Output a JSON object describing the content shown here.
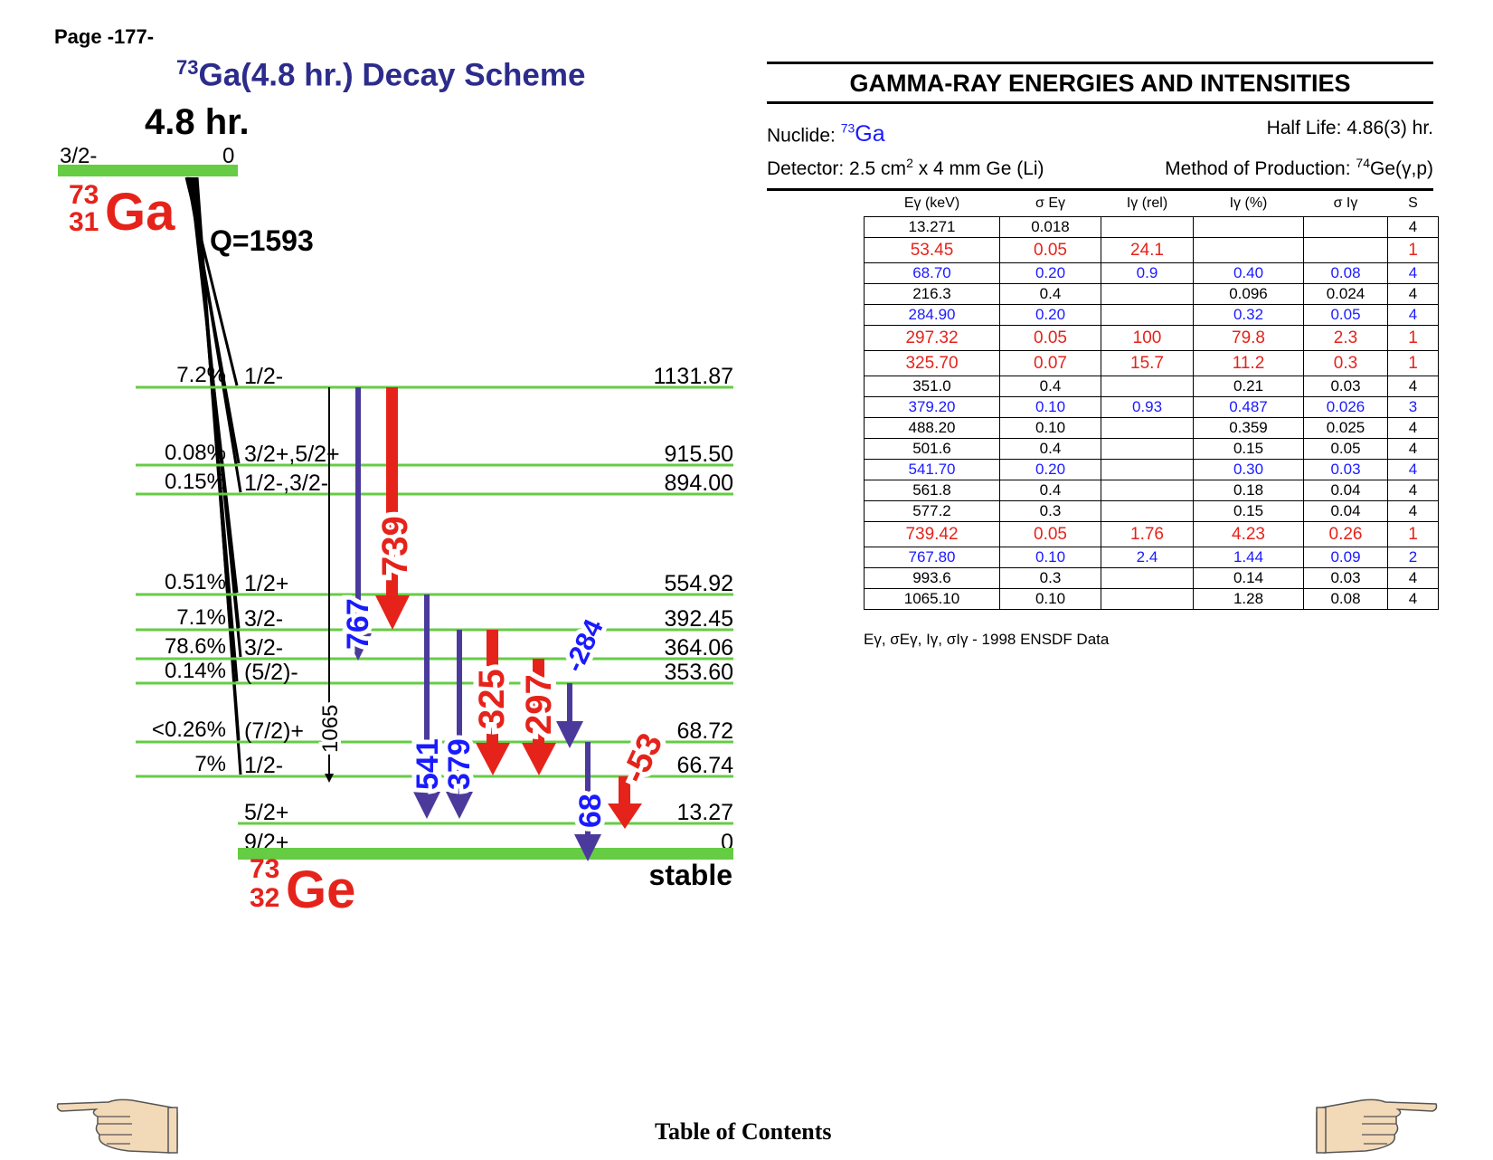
{
  "page": {
    "number": "Page -177-"
  },
  "scheme": {
    "title": {
      "mass": "73",
      "rest": "Ga(4.8 hr.) Decay Scheme"
    },
    "parent": {
      "half_life": "4.8 hr.",
      "spin": "3/2-",
      "energy": "0",
      "mass": "73",
      "z": "31",
      "symbol": "Ga",
      "q_value": "Q=1593"
    },
    "daughter": {
      "mass": "73",
      "z": "32",
      "symbol": "Ge",
      "status": "stable"
    },
    "levels": [
      {
        "spin": "1/2-",
        "energy": "1131.87",
        "feed": "7.2%"
      },
      {
        "spin": "3/2+,5/2+",
        "energy": "915.50",
        "feed": "0.08%"
      },
      {
        "spin": "1/2-,3/2-",
        "energy": "894.00",
        "feed": "0.15%"
      },
      {
        "spin": "1/2+",
        "energy": "554.92",
        "feed": "0.51%"
      },
      {
        "spin": "3/2-",
        "energy": "392.45",
        "feed": "7.1%"
      },
      {
        "spin": "3/2-",
        "energy": "364.06",
        "feed": "78.6%"
      },
      {
        "spin": "(5/2)-",
        "energy": "353.60",
        "feed": "0.14%"
      },
      {
        "spin": "(7/2)+",
        "energy": "68.72",
        "feed": "<0.26%"
      },
      {
        "spin": "1/2-",
        "energy": "66.74",
        "feed": "7%"
      },
      {
        "spin": "5/2+",
        "energy": "13.27",
        "feed": ""
      },
      {
        "spin": "9/2+",
        "energy": "0",
        "feed": ""
      }
    ],
    "transitions": [
      {
        "label": "1065",
        "color": "#000000"
      },
      {
        "label": "767",
        "color": "#1a1aff"
      },
      {
        "label": "739",
        "color": "#e5231b"
      },
      {
        "label": "541",
        "color": "#1a1aff"
      },
      {
        "label": "379",
        "color": "#1a1aff"
      },
      {
        "label": "325",
        "color": "#e5231b"
      },
      {
        "label": "297",
        "color": "#e5231b"
      },
      {
        "label": "284",
        "color": "#1a1aff"
      },
      {
        "label": "68",
        "color": "#1a1aff"
      },
      {
        "label": "53",
        "color": "#e5231b"
      }
    ]
  },
  "gamma_table": {
    "heading": "GAMMA-RAY ENERGIES AND INTENSITIES",
    "nuclide_label": "Nuclide: ",
    "nuclide_mass": "73",
    "nuclide_symbol": "Ga",
    "half_life": "Half Life: 4.86(3) hr.",
    "detector_label": "Detector: 2.5 cm",
    "detector_sup": "2",
    "detector_rest": " x 4 mm Ge (Li)",
    "production_label": "Method of Production: ",
    "production_sup": "74",
    "production_rest": "Ge(γ,p)",
    "columns": [
      "Eγ (keV)",
      "σ Eγ",
      "Iγ (rel)",
      "Iγ (%)",
      "σ Iγ",
      "S"
    ],
    "rows": [
      {
        "style": "black",
        "cells": [
          "13.271",
          "0.018",
          "",
          "",
          "",
          "4"
        ]
      },
      {
        "style": "red",
        "cells": [
          "53.45",
          "0.05",
          "24.1",
          "",
          "",
          "1"
        ]
      },
      {
        "style": "blue",
        "cells": [
          "68.70",
          "0.20",
          "0.9",
          "0.40",
          "0.08",
          "4"
        ]
      },
      {
        "style": "black",
        "cells": [
          "216.3",
          "0.4",
          "",
          "0.096",
          "0.024",
          "4"
        ]
      },
      {
        "style": "blue",
        "cells": [
          "284.90",
          "0.20",
          "",
          "0.32",
          "0.05",
          "4"
        ]
      },
      {
        "style": "red",
        "cells": [
          "297.32",
          "0.05",
          "100",
          "79.8",
          "2.3",
          "1"
        ]
      },
      {
        "style": "red",
        "cells": [
          "325.70",
          "0.07",
          "15.7",
          "11.2",
          "0.3",
          "1"
        ]
      },
      {
        "style": "black",
        "cells": [
          "351.0",
          "0.4",
          "",
          "0.21",
          "0.03",
          "4"
        ]
      },
      {
        "style": "blue",
        "cells": [
          "379.20",
          "0.10",
          "0.93",
          "0.487",
          "0.026",
          "3"
        ]
      },
      {
        "style": "black",
        "cells": [
          "488.20",
          "0.10",
          "",
          "0.359",
          "0.025",
          "4"
        ]
      },
      {
        "style": "black",
        "cells": [
          "501.6",
          "0.4",
          "",
          "0.15",
          "0.05",
          "4"
        ]
      },
      {
        "style": "blue",
        "cells": [
          "541.70",
          "0.20",
          "",
          "0.30",
          "0.03",
          "4"
        ]
      },
      {
        "style": "black",
        "cells": [
          "561.8",
          "0.4",
          "",
          "0.18",
          "0.04",
          "4"
        ]
      },
      {
        "style": "black",
        "cells": [
          "577.2",
          "0.3",
          "",
          "0.15",
          "0.04",
          "4"
        ]
      },
      {
        "style": "red",
        "cells": [
          "739.42",
          "0.05",
          "1.76",
          "4.23",
          "0.26",
          "1"
        ]
      },
      {
        "style": "blue",
        "cells": [
          "767.80",
          "0.10",
          "2.4",
          "1.44",
          "0.09",
          "2"
        ]
      },
      {
        "style": "black",
        "cells": [
          "993.6",
          "0.3",
          "",
          "0.14",
          "0.03",
          "4"
        ]
      },
      {
        "style": "black",
        "cells": [
          "1065.10",
          "0.10",
          "",
          "1.28",
          "0.08",
          "4"
        ]
      }
    ],
    "note": "Eγ, σEγ, Iγ, σIγ - 1998 ENSDF Data"
  },
  "footer": {
    "toc": "Table of Contents"
  },
  "colors": {
    "level": "#66cc44",
    "red": "#e5231b",
    "blue": "#1a1aff",
    "purple": "#4b3a9c",
    "title": "#2c2c8c"
  }
}
